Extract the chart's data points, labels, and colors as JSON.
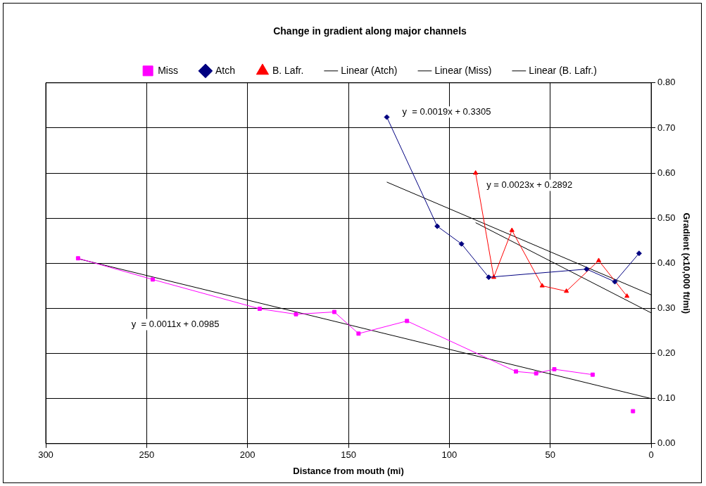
{
  "chart_data": {
    "type": "line",
    "title": "Change in gradient along major channels",
    "xlabel": "Distance from mouth (mi)",
    "ylabel": "Gradient (x10,000 ft/mi)",
    "xlim": [
      300,
      0
    ],
    "xticks": [
      300,
      250,
      200,
      150,
      100,
      50,
      0
    ],
    "ylim": [
      0,
      0.8
    ],
    "yticks": [
      {
        "value": 0,
        "label": "0.00"
      },
      {
        "value": 0.1,
        "label": "0.10"
      },
      {
        "value": 0.2,
        "label": "0.20"
      },
      {
        "value": 0.3,
        "label": "0.30"
      },
      {
        "value": 0.4,
        "label": "0.40"
      },
      {
        "value": 0.5,
        "label": "0.50"
      },
      {
        "value": 0.6,
        "label": "0.60"
      },
      {
        "value": 0.7,
        "label": "0.70"
      },
      {
        "value": 0.8,
        "label": "0.80"
      }
    ],
    "grid": true,
    "legend": "top",
    "series": [
      {
        "name": "Miss",
        "color": "#ff00ff",
        "marker": "square",
        "x": [
          284,
          247,
          194,
          176,
          157,
          145,
          121,
          67,
          57,
          48,
          29,
          20,
          9
        ],
        "values": [
          0.411,
          0.364,
          0.299,
          0.287,
          0.292,
          0.244,
          0.272,
          0.16,
          0.156,
          0.165,
          0.153,
          null,
          0.072
        ]
      },
      {
        "name": "Atch",
        "color": "#000080",
        "marker": "diamond",
        "x": [
          131,
          106,
          94,
          80.5,
          32,
          18,
          6
        ],
        "values": [
          0.724,
          0.482,
          0.443,
          0.369,
          0.387,
          0.359,
          0.422
        ]
      },
      {
        "name": "B. Lafr.",
        "color": "#ff0000",
        "marker": "triangle",
        "x": [
          87,
          78,
          69,
          54,
          42,
          26,
          12
        ],
        "values": [
          0.6,
          0.369,
          0.473,
          0.35,
          0.338,
          0.406,
          0.327
        ]
      },
      {
        "name": "Linear (Atch)",
        "color": "#000000",
        "marker": "none",
        "x": [
          131,
          0
        ],
        "values": [
          0.58,
          0.33
        ]
      },
      {
        "name": "Linear (Miss)",
        "color": "#000000",
        "marker": "none",
        "x": [
          284,
          0
        ],
        "values": [
          0.41,
          0.1
        ]
      },
      {
        "name": "Linear (B. Lafr.)",
        "color": "#000000",
        "marker": "none",
        "x": [
          87,
          0
        ],
        "values": [
          0.49,
          0.29
        ]
      }
    ],
    "annotations": [
      "y  = 0.0011x + 0.0985",
      "y  = 0.0019x + 0.3305",
      "y = 0.0023x + 0.2892"
    ]
  }
}
